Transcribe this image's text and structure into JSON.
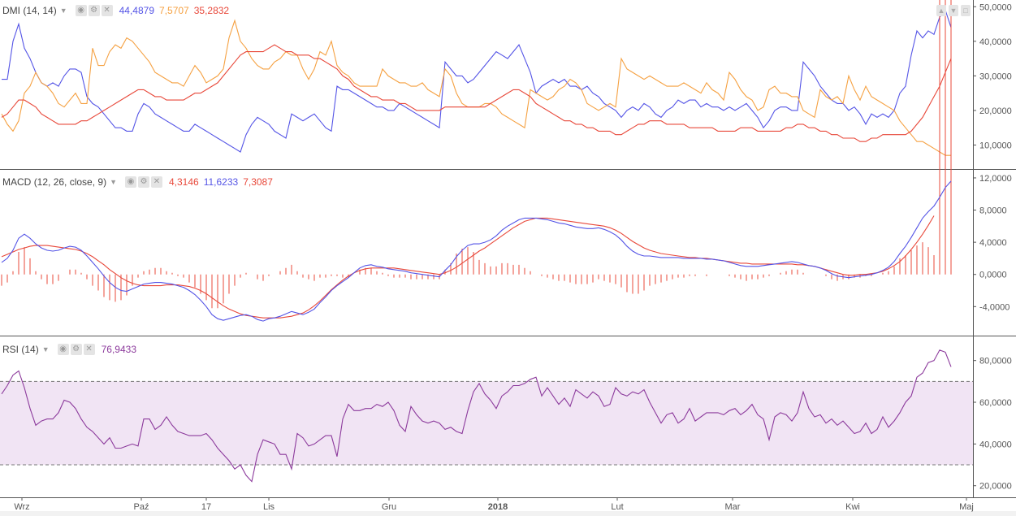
{
  "chart_data": [
    {
      "type": "line",
      "indicator": "DMI",
      "params": "(14, 14)",
      "legend_values": [
        "44,4879",
        "7,5707",
        "35,2832"
      ],
      "y_ticks": [
        "10,0000",
        "20,0000",
        "30,0000",
        "40,0000",
        "50,0000"
      ],
      "ylim": [
        4,
        51
      ],
      "series": [
        {
          "color": "#5454e6",
          "values": [
            29,
            29,
            40,
            45,
            38,
            35,
            31,
            28,
            27,
            28,
            27,
            30,
            32,
            32,
            31,
            24,
            22,
            21,
            19,
            17,
            15,
            15,
            14,
            14,
            19,
            22,
            21,
            19,
            18,
            17,
            16,
            15,
            14,
            14,
            16,
            15,
            14,
            13,
            12,
            11,
            10,
            9,
            8,
            13,
            16,
            18,
            17,
            16,
            14,
            13,
            12,
            19,
            18,
            17,
            18,
            19,
            17,
            15,
            14,
            27,
            26,
            26,
            25,
            24,
            23,
            22,
            21,
            21,
            20,
            20,
            22,
            21,
            20,
            19,
            18,
            17,
            16,
            15,
            34,
            32,
            30,
            30,
            28,
            29,
            31,
            33,
            35,
            37,
            36,
            35,
            37,
            39,
            35,
            31,
            25,
            27,
            28,
            29,
            28,
            29,
            27,
            27,
            26,
            27,
            25,
            24,
            22,
            21,
            20,
            18,
            20,
            21,
            20,
            22,
            21,
            19,
            18,
            20,
            21,
            23,
            22,
            23,
            23,
            21,
            22,
            21,
            21,
            20,
            21,
            20,
            21,
            22,
            20,
            18,
            15,
            17,
            20,
            21,
            21,
            20,
            20,
            34,
            32,
            30,
            27,
            25,
            23,
            22,
            22,
            20,
            21,
            19,
            16,
            19,
            18,
            19,
            18,
            20,
            25,
            27,
            36,
            43,
            41,
            43,
            42,
            47,
            49,
            44
          ]
        },
        {
          "color": "#f5a142",
          "values": [
            19,
            16,
            14,
            17,
            25,
            27,
            31,
            28,
            27,
            25,
            22,
            21,
            23,
            25,
            22,
            22,
            38,
            33,
            33,
            37,
            39,
            38,
            41,
            40,
            38,
            36,
            34,
            31,
            30,
            29,
            28,
            28,
            27,
            30,
            33,
            31,
            28,
            29,
            30,
            32,
            41,
            46,
            40,
            38,
            35,
            33,
            32,
            32,
            34,
            35,
            37,
            36,
            36,
            32,
            29,
            32,
            37,
            36,
            40,
            33,
            31,
            30,
            28,
            27,
            27,
            27,
            27,
            32,
            30,
            29,
            28,
            28,
            27,
            27,
            28,
            26,
            25,
            24,
            32,
            30,
            25,
            22,
            21,
            21,
            21,
            22,
            22,
            21,
            19,
            18,
            17,
            16,
            15,
            26,
            25,
            24,
            23,
            24,
            26,
            27,
            29,
            28,
            26,
            22,
            21,
            20,
            21,
            22,
            21,
            35,
            32,
            31,
            30,
            29,
            30,
            29,
            28,
            27,
            27,
            27,
            28,
            27,
            26,
            25,
            28,
            26,
            25,
            23,
            31,
            29,
            26,
            24,
            23,
            20,
            21,
            26,
            27,
            25,
            25,
            24,
            24,
            20,
            19,
            18,
            26,
            24,
            23,
            24,
            22,
            30,
            26,
            23,
            27,
            24,
            23,
            22,
            21,
            20,
            17,
            15,
            13,
            11,
            11,
            10,
            9,
            8,
            7,
            7
          ]
        },
        {
          "color": "#e8483a",
          "values": [
            18,
            19,
            21,
            23,
            23,
            22,
            21,
            19,
            18,
            17,
            16,
            16,
            16,
            16,
            17,
            17,
            18,
            19,
            20,
            21,
            22,
            23,
            24,
            25,
            26,
            26,
            25,
            24,
            24,
            23,
            23,
            23,
            23,
            24,
            25,
            25,
            26,
            27,
            28,
            30,
            32,
            34,
            36,
            37,
            37,
            37,
            37,
            38,
            39,
            38,
            37,
            37,
            36,
            36,
            36,
            35,
            35,
            34,
            33,
            32,
            30,
            29,
            27,
            26,
            25,
            24,
            24,
            23,
            23,
            23,
            22,
            22,
            21,
            20,
            20,
            20,
            20,
            20,
            21,
            21,
            21,
            21,
            21,
            21,
            21,
            21,
            22,
            23,
            24,
            25,
            26,
            26,
            25,
            24,
            22,
            21,
            20,
            19,
            18,
            17,
            17,
            16,
            16,
            15,
            15,
            14,
            14,
            14,
            13,
            13,
            14,
            15,
            16,
            16,
            17,
            17,
            17,
            16,
            16,
            16,
            16,
            15,
            15,
            15,
            15,
            15,
            14,
            14,
            14,
            14,
            15,
            15,
            15,
            14,
            14,
            14,
            14,
            14,
            15,
            15,
            16,
            16,
            15,
            15,
            14,
            14,
            13,
            13,
            12,
            12,
            12,
            11,
            11,
            12,
            12,
            13,
            13,
            13,
            13,
            13,
            14,
            16,
            18,
            21,
            24,
            27,
            31,
            35
          ]
        }
      ]
    },
    {
      "type": "line",
      "indicator": "MACD",
      "params": "(12, 26, close, 9)",
      "legend_values": [
        "4,3146",
        "11,6233",
        "7,3087"
      ],
      "y_ticks": [
        "-4,0000",
        "0,0000",
        "4,0000",
        "8,0000",
        "12,0000"
      ],
      "ylim": [
        -7.2,
        12.6
      ],
      "macd": [
        1.5,
        2,
        3,
        4.5,
        5,
        4.5,
        3.8,
        3.3,
        3,
        2.9,
        3,
        3.3,
        3.5,
        3.4,
        3,
        2.3,
        1.5,
        0.7,
        -0.2,
        -1,
        -1.6,
        -2,
        -2.1,
        -1.8,
        -1.5,
        -1.2,
        -1.1,
        -1,
        -1,
        -1.1,
        -1.2,
        -1.4,
        -1.6,
        -2,
        -2.5,
        -3.2,
        -4,
        -5,
        -5.5,
        -5.7,
        -5.5,
        -5.3,
        -5.1,
        -5,
        -5.2,
        -5.6,
        -5.8,
        -5.5,
        -5.4,
        -5.2,
        -4.9,
        -4.6,
        -4.8,
        -5,
        -4.7,
        -4.3,
        -3.5,
        -2.8,
        -2,
        -1.4,
        -0.9,
        -0.4,
        0.2,
        0.8,
        1.1,
        1.2,
        1,
        0.9,
        0.7,
        0.6,
        0.5,
        0.4,
        0.2,
        0.1,
        0,
        -0.1,
        -0.2,
        -0.3,
        0.5,
        1.2,
        2.2,
        3,
        3.6,
        3.8,
        3.8,
        4,
        4.3,
        4.8,
        5.5,
        6,
        6.4,
        6.8,
        7,
        7,
        7,
        6.9,
        6.8,
        6.6,
        6.4,
        6.3,
        6.1,
        5.9,
        5.8,
        5.7,
        5.7,
        5.8,
        5.6,
        5.3,
        4.9,
        4.3,
        3.5,
        2.9,
        2.5,
        2.3,
        2.3,
        2.2,
        2.1,
        2.1,
        2.1,
        2.1,
        2,
        2,
        2,
        2,
        1.9,
        1.9,
        1.8,
        1.7,
        1.5,
        1.3,
        1.1,
        1,
        1,
        1,
        1.1,
        1.2,
        1.3,
        1.4,
        1.5,
        1.6,
        1.5,
        1.3,
        1.1,
        1,
        0.8,
        0.5,
        0.1,
        -0.2,
        -0.3,
        -0.4,
        -0.3,
        -0.2,
        -0.1,
        0,
        0.2,
        0.5,
        0.9,
        1.6,
        2.6,
        3.5,
        4.6,
        5.8,
        7,
        7.8,
        8.5,
        9.6,
        10.8,
        11.6
      ],
      "signal": [
        2.2,
        2.5,
        2.8,
        3.1,
        3.3,
        3.5,
        3.6,
        3.6,
        3.6,
        3.5,
        3.4,
        3.3,
        3.2,
        3.1,
        2.9,
        2.6,
        2.2,
        1.7,
        1.2,
        0.6,
        0.1,
        -0.4,
        -0.8,
        -1.1,
        -1.3,
        -1.4,
        -1.4,
        -1.4,
        -1.4,
        -1.3,
        -1.3,
        -1.3,
        -1.4,
        -1.5,
        -1.7,
        -2,
        -2.4,
        -2.9,
        -3.4,
        -3.9,
        -4.3,
        -4.6,
        -4.9,
        -5.1,
        -5.2,
        -5.3,
        -5.4,
        -5.4,
        -5.4,
        -5.4,
        -5.3,
        -5.2,
        -5,
        -4.8,
        -4.4,
        -3.9,
        -3.3,
        -2.6,
        -1.9,
        -1.3,
        -0.7,
        -0.2,
        0.2,
        0.5,
        0.7,
        0.8,
        0.8,
        0.8,
        0.8,
        0.8,
        0.7,
        0.6,
        0.5,
        0.4,
        0.3,
        0.2,
        0.1,
        0,
        0.2,
        0.5,
        0.9,
        1.4,
        1.9,
        2.4,
        2.9,
        3.3,
        3.8,
        4.3,
        4.8,
        5.3,
        5.8,
        6.2,
        6.6,
        6.8,
        7,
        7,
        7,
        6.9,
        6.8,
        6.7,
        6.6,
        6.5,
        6.4,
        6.3,
        6.2,
        6.1,
        6,
        5.8,
        5.5,
        5.1,
        4.6,
        4.1,
        3.7,
        3.3,
        3,
        2.8,
        2.6,
        2.5,
        2.4,
        2.3,
        2.2,
        2.1,
        2.1,
        2,
        2,
        1.9,
        1.8,
        1.7,
        1.6,
        1.5,
        1.4,
        1.4,
        1.3,
        1.3,
        1.3,
        1.3,
        1.3,
        1.3,
        1.3,
        1.3,
        1.2,
        1.2,
        1.1,
        1,
        0.8,
        0.6,
        0.4,
        0.2,
        0,
        -0.1,
        -0.1,
        0,
        0,
        0.1,
        0.2,
        0.4,
        0.7,
        1.1,
        1.6,
        2.3,
        3.1,
        4,
        5,
        6.1,
        7.3
      ]
    },
    {
      "type": "line",
      "indicator": "RSI",
      "params": "(14)",
      "legend_values": [
        "76,9433"
      ],
      "y_ticks": [
        "20,0000",
        "40,0000",
        "60,0000",
        "80,0000"
      ],
      "ylim": [
        16,
        90
      ],
      "bands": [
        30,
        70
      ],
      "values": [
        64,
        68,
        73,
        75,
        67,
        57,
        49,
        51,
        52,
        52,
        55,
        61,
        60,
        57,
        52,
        48,
        46,
        43,
        40,
        43,
        38,
        38,
        39,
        40,
        39,
        52,
        52,
        47,
        49,
        53,
        49,
        46,
        45,
        44,
        44,
        44,
        45,
        42,
        38,
        35,
        32,
        28,
        30,
        25,
        22,
        35,
        42,
        41,
        40,
        35,
        35,
        28,
        45,
        43,
        39,
        40,
        42,
        44,
        44,
        34,
        52,
        59,
        56,
        56,
        57,
        57,
        59,
        58,
        60,
        56,
        49,
        46,
        58,
        54,
        51,
        50,
        51,
        50,
        47,
        48,
        46,
        45,
        56,
        65,
        69,
        64,
        61,
        57,
        63,
        65,
        68,
        68,
        69,
        71,
        72,
        63,
        67,
        63,
        59,
        62,
        58,
        66,
        64,
        62,
        65,
        63,
        58,
        59,
        67,
        64,
        63,
        65,
        64,
        66,
        60,
        55,
        50,
        54,
        55,
        50,
        52,
        57,
        51,
        53,
        55,
        55,
        55,
        54,
        56,
        57,
        54,
        56,
        59,
        54,
        52,
        42,
        53,
        55,
        54,
        51,
        55,
        65,
        57,
        53,
        54,
        50,
        52,
        49,
        51,
        48,
        45,
        46,
        50,
        45,
        47,
        53,
        48,
        51,
        55,
        60,
        63,
        72,
        74,
        79,
        80,
        85,
        84,
        77
      ]
    }
  ],
  "x_ticks": [
    "Wrz",
    "Paź",
    "17",
    "Lis",
    "Gru",
    "2018",
    "Lut",
    "Mar",
    "Kwi",
    "Maj"
  ],
  "colors": {
    "dmi_plus": "#5454e6",
    "dmi_minus": "#f5a142",
    "adx": "#e8483a",
    "macd": "#5454e6",
    "signal": "#e8483a",
    "histogram": "#e8483a",
    "rsi": "#8c3a9c",
    "rsi_band": "#f1e4f4"
  }
}
